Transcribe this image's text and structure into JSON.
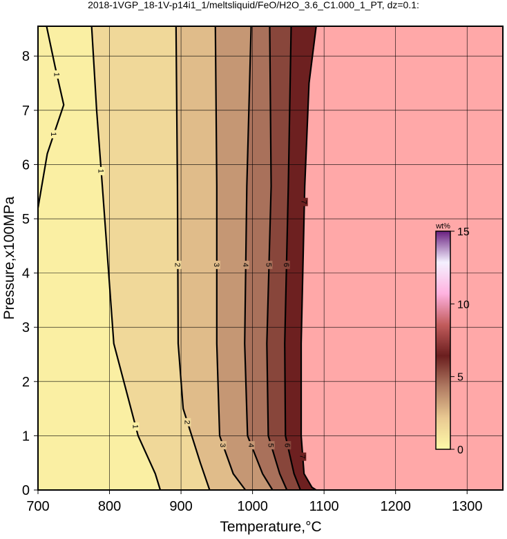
{
  "chart_data": {
    "type": "contour",
    "title": "2018-1VGP_18-1V-p14i1_1/meltsliquid/FeO/H2O_3.6_C1.000_1_PT, dz=0.1:",
    "x_label": "Temperature,°C",
    "y_label": "Pressure,x100MPa",
    "xlim": [
      700,
      1350
    ],
    "ylim": [
      0,
      8.55
    ],
    "xticks": [
      700,
      800,
      900,
      1000,
      1100,
      1200,
      1300
    ],
    "yticks": [
      0,
      1,
      2,
      3,
      4,
      5,
      6,
      7,
      8
    ],
    "grid": true,
    "outside_color": "#ffa8a8",
    "colormap": [
      "#fffba8",
      "#e9c992",
      "#b07a62",
      "#6a1e1e",
      "#c25c5c",
      "#ffb2e0",
      "#f4f0ff",
      "#6a2080"
    ],
    "colorbar": {
      "label": "wt%",
      "lim": [
        0,
        15
      ],
      "ticks": [
        0,
        5,
        10,
        15
      ]
    },
    "contours": [
      {
        "level": 1,
        "x": [
          700,
          713,
          736,
          724,
          712
        ],
        "y": [
          5.2,
          6.2,
          7.1,
          7.8,
          8.55
        ]
      },
      {
        "level": 1,
        "x": [
          871,
          864,
          840,
          806,
          790,
          782,
          775
        ],
        "y": [
          0,
          0.3,
          1,
          2.7,
          5.6,
          7,
          8.55
        ]
      },
      {
        "level": 2,
        "x": [
          940,
          927,
          903,
          896,
          895,
          893
        ],
        "y": [
          0,
          0.5,
          1.5,
          2.7,
          5.6,
          8.55
        ]
      },
      {
        "level": 3,
        "x": [
          990,
          973,
          954,
          950,
          950,
          948
        ],
        "y": [
          0,
          0.3,
          1,
          2.7,
          5.6,
          8.55
        ]
      },
      {
        "level": 4,
        "x": [
          1028,
          1014,
          993,
          989,
          992,
          998
        ],
        "y": [
          0,
          0.3,
          1,
          2.7,
          5.6,
          8.55
        ]
      },
      {
        "level": 5,
        "x": [
          1048,
          1038,
          1022,
          1020,
          1026,
          1024
        ],
        "y": [
          0,
          0.3,
          1,
          2.7,
          5.6,
          8.55
        ]
      },
      {
        "level": 6,
        "x": [
          1067,
          1058,
          1046,
          1045,
          1050,
          1054
        ],
        "y": [
          0,
          0.3,
          1,
          2.7,
          5.6,
          8.55
        ]
      },
      {
        "level": 7,
        "x": [
          1089,
          1083,
          1072,
          1068,
          1068,
          1073,
          1079,
          1089
        ],
        "y": [
          0,
          0.05,
          0.3,
          1,
          2.7,
          5.6,
          7.5,
          8.55
        ]
      }
    ]
  }
}
